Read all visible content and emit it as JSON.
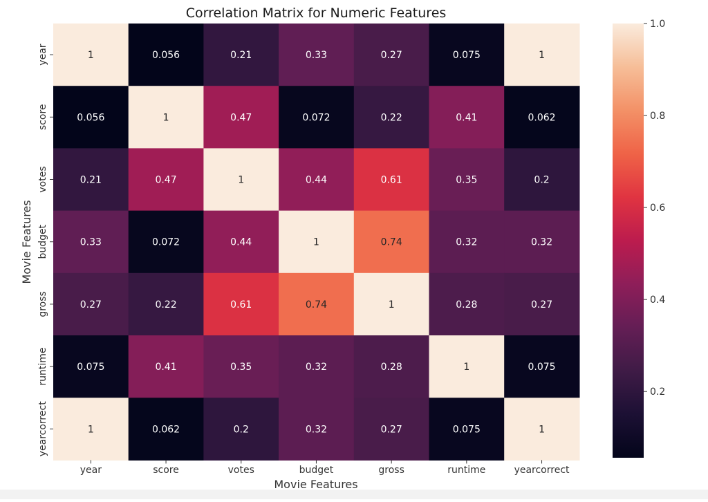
{
  "chart_data": {
    "type": "heatmap",
    "title": "Correlation Matrix for Numeric Features",
    "xlabel": "Movie Features",
    "ylabel": "Movie Features",
    "x_categories": [
      "year",
      "score",
      "votes",
      "budget",
      "gross",
      "runtime",
      "yearcorrect"
    ],
    "y_categories": [
      "year",
      "score",
      "votes",
      "budget",
      "gross",
      "runtime",
      "yearcorrect"
    ],
    "values": [
      [
        1,
        0.056,
        0.21,
        0.33,
        0.27,
        0.075,
        1
      ],
      [
        0.056,
        1,
        0.47,
        0.072,
        0.22,
        0.41,
        0.062
      ],
      [
        0.21,
        0.47,
        1,
        0.44,
        0.61,
        0.35,
        0.2
      ],
      [
        0.33,
        0.072,
        0.44,
        1,
        0.74,
        0.32,
        0.32
      ],
      [
        0.27,
        0.22,
        0.61,
        0.74,
        1,
        0.28,
        0.27
      ],
      [
        0.075,
        0.41,
        0.35,
        0.32,
        0.28,
        1,
        0.075
      ],
      [
        1,
        0.062,
        0.2,
        0.32,
        0.27,
        0.075,
        1
      ]
    ],
    "colorbar": {
      "vmin": 0.056,
      "vmax": 1.0,
      "ticks": [
        0.2,
        0.4,
        0.6,
        0.8,
        1.0
      ],
      "tick_labels": [
        "0.2",
        "0.4",
        "0.6",
        "0.8",
        "1.0"
      ],
      "colormap": "rocket"
    },
    "annotated": true,
    "grid": false
  }
}
